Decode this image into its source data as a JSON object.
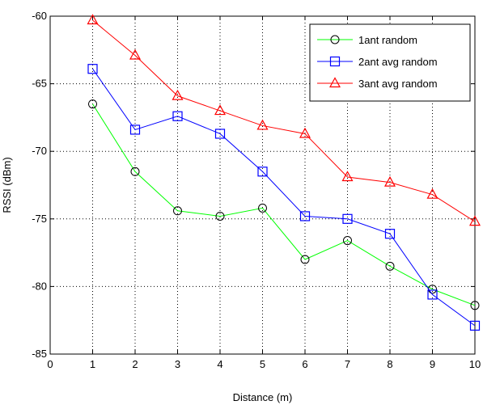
{
  "chart_data": {
    "type": "line",
    "xlabel": "Distance (m)",
    "ylabel": "RSSI (dBm)",
    "xlim": [
      0,
      10
    ],
    "ylim": [
      -85,
      -60
    ],
    "xticks": [
      "0",
      "1",
      "2",
      "3",
      "4",
      "5",
      "6",
      "7",
      "8",
      "9",
      "10"
    ],
    "yticks": [
      "-60",
      "-65",
      "-70",
      "-75",
      "-80",
      "-85"
    ],
    "grid": true,
    "legend_position": "top-right",
    "x": [
      1,
      2,
      3,
      4,
      5,
      6,
      7,
      8,
      9,
      10
    ],
    "series": [
      {
        "name": "1ant random",
        "color": "#00ff00",
        "marker": "circle",
        "values": [
          -66.5,
          -71.5,
          -74.4,
          -74.8,
          -74.2,
          -78.0,
          -76.6,
          -78.5,
          -80.2,
          -81.4
        ]
      },
      {
        "name": "2ant avg random",
        "color": "#0000ff",
        "marker": "square",
        "values": [
          -63.9,
          -68.4,
          -67.4,
          -68.7,
          -71.5,
          -74.8,
          -75.0,
          -76.1,
          -80.6,
          -82.9
        ]
      },
      {
        "name": "3ant avg random",
        "color": "#ff0000",
        "marker": "triangle",
        "values": [
          -60.3,
          -62.9,
          -65.9,
          -67.0,
          -68.1,
          -68.7,
          -71.9,
          -72.3,
          -73.2,
          -75.2
        ]
      }
    ]
  }
}
